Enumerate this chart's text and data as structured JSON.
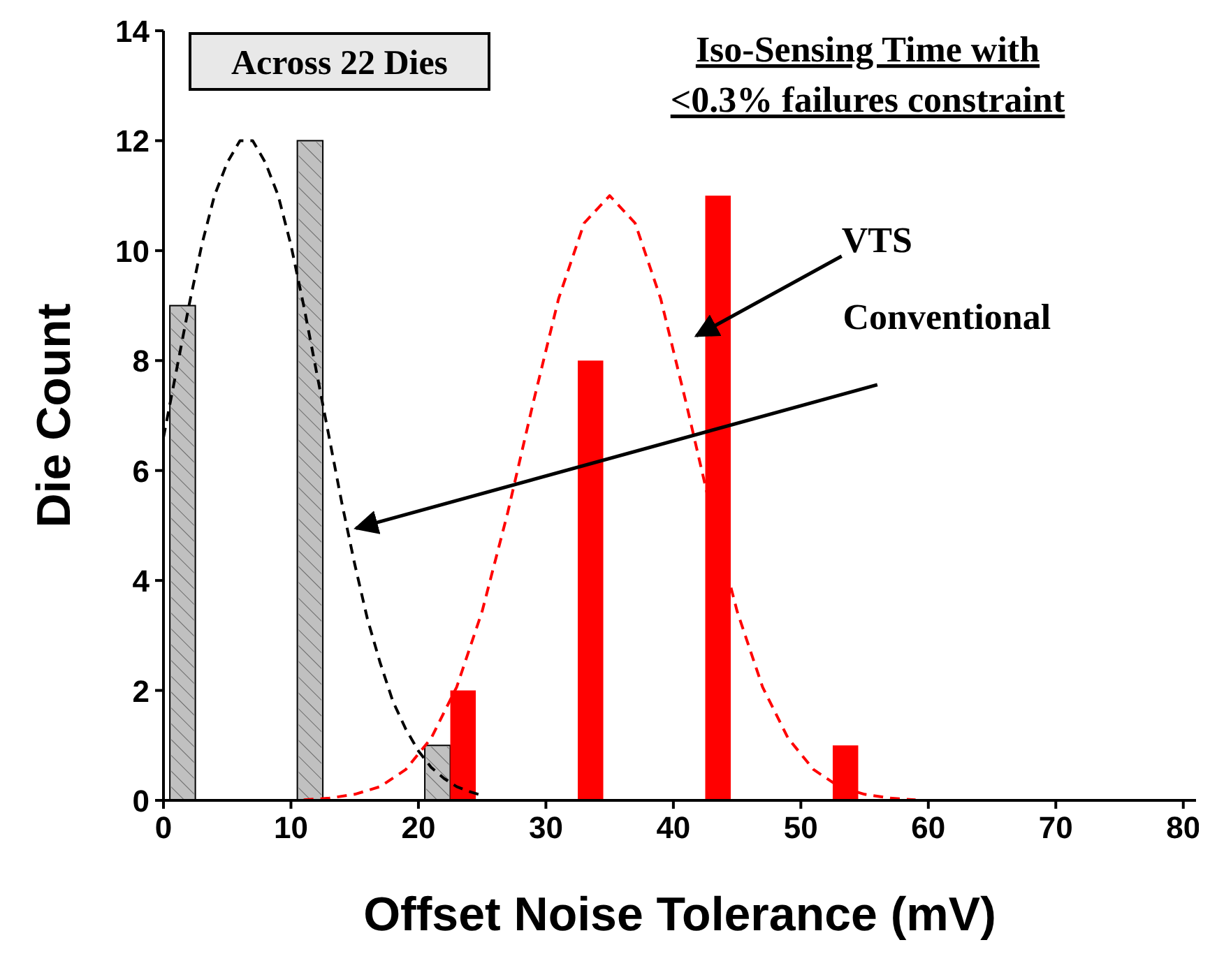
{
  "chart_data": {
    "type": "bar",
    "title": "Iso-Sensing Time with\n<0.3% failures constraint",
    "xlabel": "Offset Noise Tolerance (mV)",
    "ylabel": "Die Count",
    "xlim": [
      0,
      81
    ],
    "ylim": [
      0,
      14
    ],
    "xticks": [
      0,
      10,
      20,
      30,
      40,
      50,
      60,
      70,
      80
    ],
    "yticks": [
      0,
      2,
      4,
      6,
      8,
      10,
      12,
      14
    ],
    "grid": false,
    "series": [
      {
        "color": "#c0c0c0",
        "x": [
          1.5,
          11.5,
          21.5
        ],
        "values": [
          9,
          12,
          1
        ]
      },
      {
        "color": "#ff0000",
        "x": [
          23.5,
          33.5,
          43.5,
          53.5
        ],
        "values": [
          2,
          8,
          11,
          1
        ]
      },
      {
        "type": "line",
        "color": "#000000",
        "line_style": "dashed",
        "x": [
          0,
          1,
          2,
          3,
          4,
          5,
          6,
          7,
          8,
          9,
          10,
          11,
          12,
          13,
          14,
          15,
          16,
          17,
          18,
          19,
          20,
          21,
          22,
          23,
          24,
          25
        ],
        "values": [
          6.6,
          7.8,
          9.0,
          10.1,
          11.0,
          11.6,
          12.0,
          12.0,
          11.6,
          11.0,
          10.1,
          9.0,
          7.8,
          6.6,
          5.4,
          4.3,
          3.3,
          2.5,
          1.8,
          1.3,
          0.9,
          0.6,
          0.4,
          0.25,
          0.16,
          0.09
        ]
      },
      {
        "type": "line",
        "color": "#ff0000",
        "line_style": "dashed",
        "x": [
          11,
          13,
          15,
          17,
          19,
          21,
          23,
          25,
          27,
          29,
          31,
          33,
          35,
          37,
          39,
          41,
          43,
          45,
          47,
          49,
          51,
          53,
          55,
          57,
          59
        ],
        "values": [
          0.01,
          0.04,
          0.11,
          0.25,
          0.56,
          1.13,
          2.06,
          3.44,
          5.23,
          7.23,
          9.13,
          10.5,
          11,
          10.5,
          9.13,
          7.23,
          5.23,
          3.44,
          2.06,
          1.13,
          0.56,
          0.25,
          0.11,
          0.04,
          0.01
        ]
      }
    ],
    "annotations": [
      "Across 22 Dies",
      "VTS",
      "Conventional"
    ]
  }
}
